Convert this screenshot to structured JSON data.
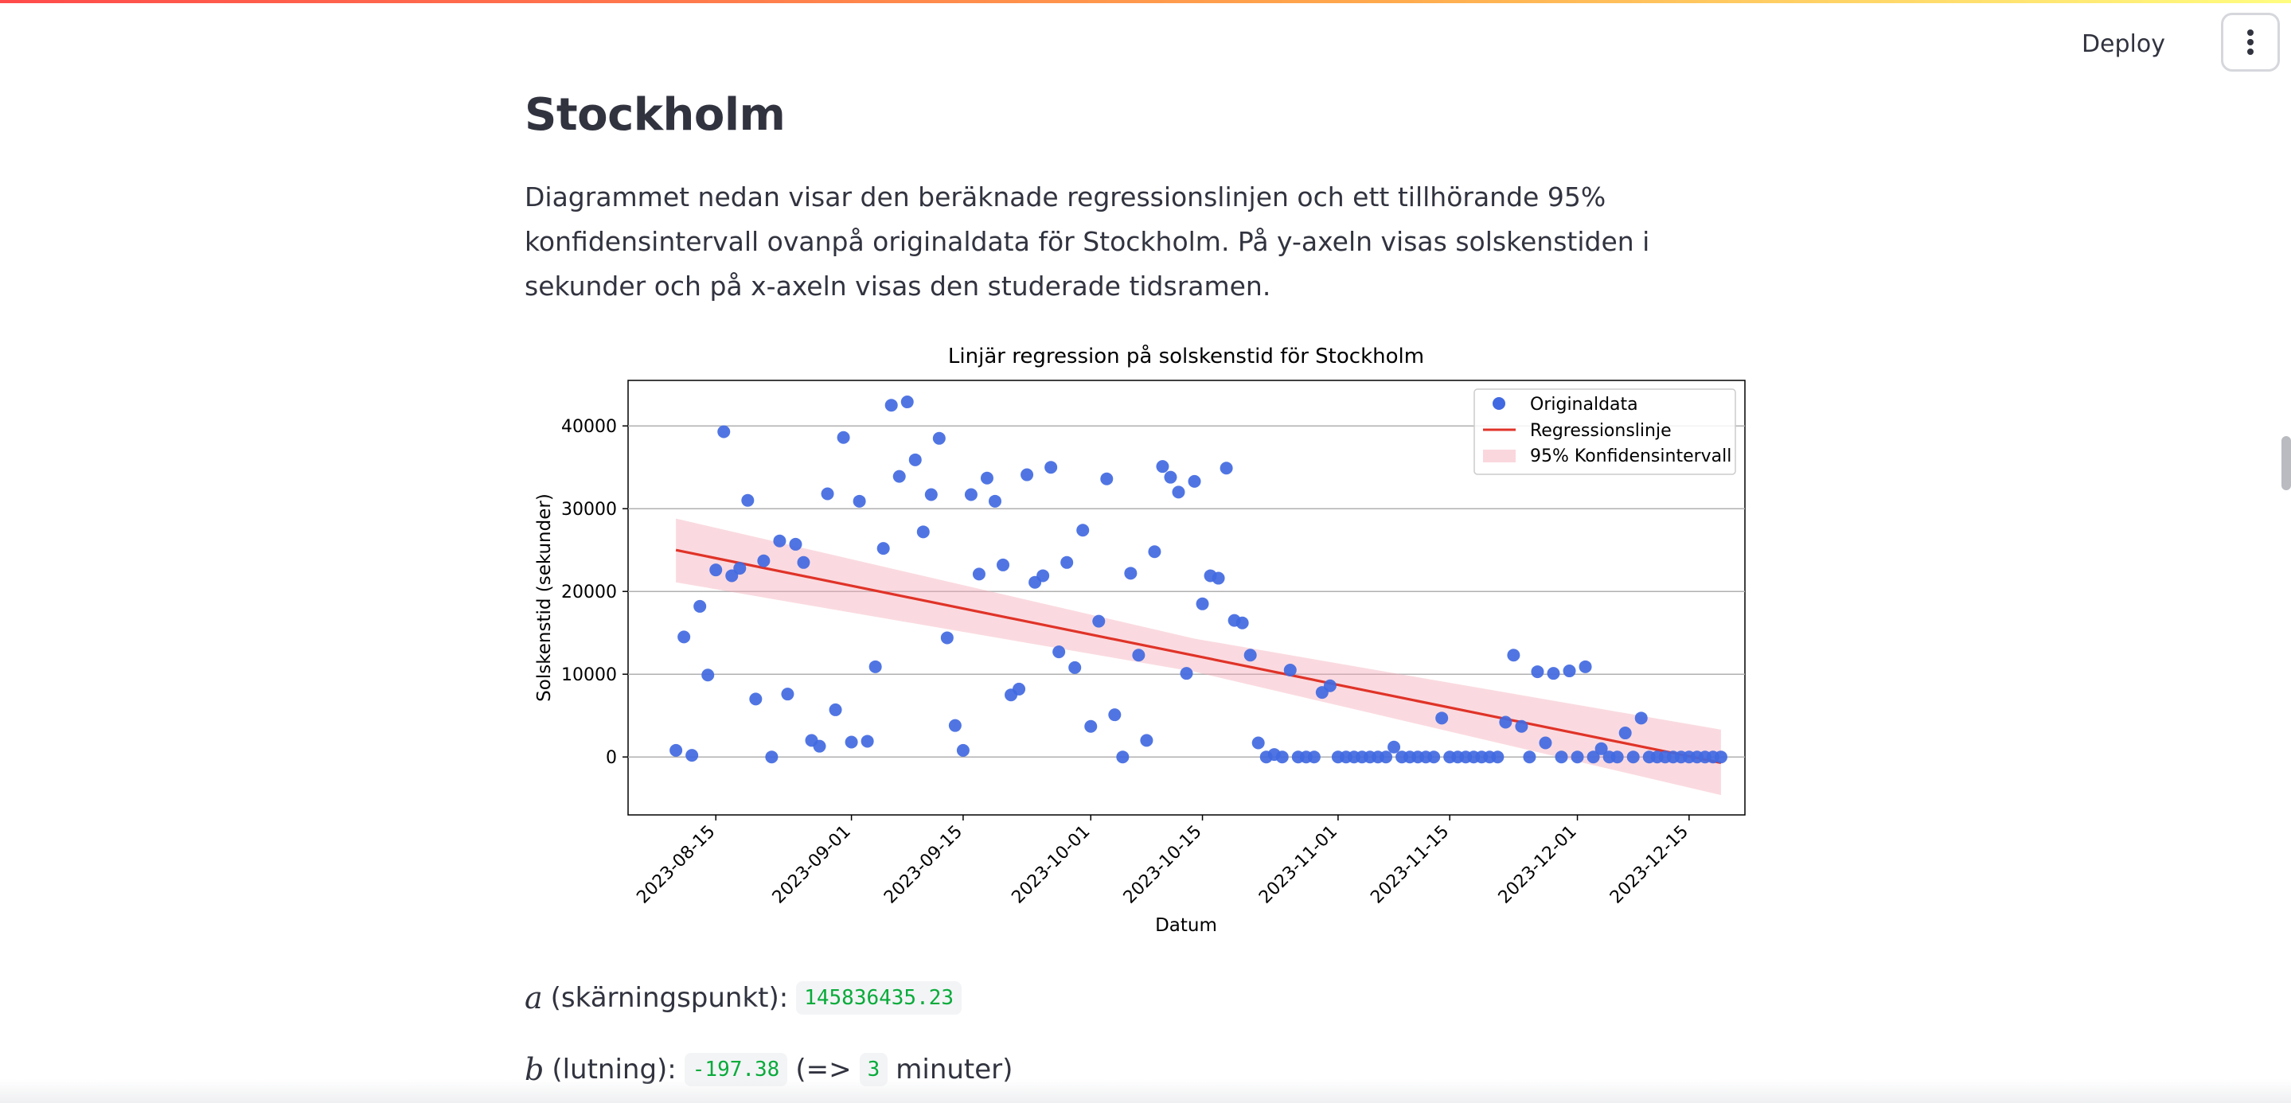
{
  "header": {
    "deploy_label": "Deploy",
    "menu_icon": "kebab-menu-icon"
  },
  "main": {
    "title": "Stockholm",
    "intro": "Diagrammet nedan visar den beräknade regressionslinjen och ett tillhörande 95% konfidensintervall ovanpå originaldata för Stockholm. På y-axeln visas solskenstiden i sekunder och på x-axeln visas den studerade tidsramen."
  },
  "stats": {
    "a_symbol": "a",
    "a_label": "(skärningspunkt):",
    "a_value": "145836435.23",
    "b_symbol": "b",
    "b_label": "(lutning):",
    "b_value": "-197.38",
    "b_open": "(=>",
    "b_minutes": "3",
    "b_close": "minuter)"
  },
  "colors": {
    "points": "#4169e1",
    "regression": "#e03328",
    "ci_fill": "#f4a6b4",
    "accent": "#ff4b4b",
    "code_text": "#09ab3b"
  },
  "chart_data": {
    "type": "scatter",
    "title": "Linjär regression på solskenstid för Stockholm",
    "xlabel": "Datum",
    "ylabel": "Solskenstid (sekunder)",
    "xlim": [
      "2023-08-04",
      "2023-12-22"
    ],
    "ylim": [
      -7000,
      45500
    ],
    "x_ticks": [
      "2023-08-15",
      "2023-09-01",
      "2023-09-15",
      "2023-10-01",
      "2023-10-15",
      "2023-11-01",
      "2023-11-15",
      "2023-12-01",
      "2023-12-15"
    ],
    "y_ticks": [
      0,
      10000,
      20000,
      30000,
      40000
    ],
    "grid": "horizontal",
    "legend": {
      "position": "top-right",
      "entries": [
        "Originaldata",
        "Regressionslinje",
        "95% Konfidensintervall"
      ]
    },
    "series": [
      {
        "name": "Originaldata",
        "kind": "scatter",
        "points": [
          [
            "2023-08-10",
            800
          ],
          [
            "2023-08-11",
            14500
          ],
          [
            "2023-08-12",
            200
          ],
          [
            "2023-08-13",
            18200
          ],
          [
            "2023-08-14",
            9900
          ],
          [
            "2023-08-15",
            22600
          ],
          [
            "2023-08-16",
            39300
          ],
          [
            "2023-08-17",
            21900
          ],
          [
            "2023-08-18",
            22800
          ],
          [
            "2023-08-19",
            31000
          ],
          [
            "2023-08-20",
            7000
          ],
          [
            "2023-08-21",
            23700
          ],
          [
            "2023-08-22",
            0
          ],
          [
            "2023-08-23",
            26100
          ],
          [
            "2023-08-24",
            7600
          ],
          [
            "2023-08-25",
            25700
          ],
          [
            "2023-08-26",
            23500
          ],
          [
            "2023-08-27",
            2000
          ],
          [
            "2023-08-28",
            1300
          ],
          [
            "2023-08-29",
            31800
          ],
          [
            "2023-08-30",
            5700
          ],
          [
            "2023-08-31",
            38600
          ],
          [
            "2023-09-01",
            1800
          ],
          [
            "2023-09-02",
            30900
          ],
          [
            "2023-09-03",
            1900
          ],
          [
            "2023-09-04",
            10900
          ],
          [
            "2023-09-05",
            25200
          ],
          [
            "2023-09-06",
            42500
          ],
          [
            "2023-09-07",
            33900
          ],
          [
            "2023-09-08",
            42900
          ],
          [
            "2023-09-09",
            35900
          ],
          [
            "2023-09-10",
            27200
          ],
          [
            "2023-09-11",
            31700
          ],
          [
            "2023-09-12",
            38500
          ],
          [
            "2023-09-13",
            14400
          ],
          [
            "2023-09-14",
            3800
          ],
          [
            "2023-09-15",
            800
          ],
          [
            "2023-09-16",
            31700
          ],
          [
            "2023-09-17",
            22100
          ],
          [
            "2023-09-18",
            33700
          ],
          [
            "2023-09-19",
            30900
          ],
          [
            "2023-09-20",
            23200
          ],
          [
            "2023-09-21",
            7500
          ],
          [
            "2023-09-22",
            8200
          ],
          [
            "2023-09-23",
            34100
          ],
          [
            "2023-09-24",
            21100
          ],
          [
            "2023-09-25",
            21900
          ],
          [
            "2023-09-26",
            35000
          ],
          [
            "2023-09-27",
            12700
          ],
          [
            "2023-09-28",
            23500
          ],
          [
            "2023-09-29",
            10800
          ],
          [
            "2023-09-30",
            27400
          ],
          [
            "2023-10-01",
            3700
          ],
          [
            "2023-10-02",
            16400
          ],
          [
            "2023-10-03",
            33600
          ],
          [
            "2023-10-04",
            5100
          ],
          [
            "2023-10-05",
            0
          ],
          [
            "2023-10-06",
            22200
          ],
          [
            "2023-10-07",
            12300
          ],
          [
            "2023-10-08",
            2000
          ],
          [
            "2023-10-09",
            24800
          ],
          [
            "2023-10-10",
            35100
          ],
          [
            "2023-10-11",
            33800
          ],
          [
            "2023-10-12",
            32000
          ],
          [
            "2023-10-13",
            10100
          ],
          [
            "2023-10-14",
            33300
          ],
          [
            "2023-10-15",
            18500
          ],
          [
            "2023-10-16",
            21900
          ],
          [
            "2023-10-17",
            21600
          ],
          [
            "2023-10-18",
            34900
          ],
          [
            "2023-10-19",
            16500
          ],
          [
            "2023-10-20",
            16200
          ],
          [
            "2023-10-21",
            12300
          ],
          [
            "2023-10-22",
            1700
          ],
          [
            "2023-10-23",
            0
          ],
          [
            "2023-10-24",
            300
          ],
          [
            "2023-10-25",
            0
          ],
          [
            "2023-10-26",
            10500
          ],
          [
            "2023-10-27",
            0
          ],
          [
            "2023-10-28",
            0
          ],
          [
            "2023-10-29",
            0
          ],
          [
            "2023-10-30",
            7800
          ],
          [
            "2023-10-31",
            8600
          ],
          [
            "2023-11-01",
            0
          ],
          [
            "2023-11-02",
            0
          ],
          [
            "2023-11-03",
            0
          ],
          [
            "2023-11-04",
            0
          ],
          [
            "2023-11-05",
            0
          ],
          [
            "2023-11-06",
            0
          ],
          [
            "2023-11-07",
            0
          ],
          [
            "2023-11-08",
            1200
          ],
          [
            "2023-11-09",
            0
          ],
          [
            "2023-11-10",
            0
          ],
          [
            "2023-11-11",
            0
          ],
          [
            "2023-11-12",
            0
          ],
          [
            "2023-11-13",
            0
          ],
          [
            "2023-11-14",
            4700
          ],
          [
            "2023-11-15",
            0
          ],
          [
            "2023-11-16",
            0
          ],
          [
            "2023-11-17",
            0
          ],
          [
            "2023-11-18",
            0
          ],
          [
            "2023-11-19",
            0
          ],
          [
            "2023-11-20",
            0
          ],
          [
            "2023-11-21",
            0
          ],
          [
            "2023-11-22",
            4200
          ],
          [
            "2023-11-23",
            12300
          ],
          [
            "2023-11-24",
            3700
          ],
          [
            "2023-11-25",
            0
          ],
          [
            "2023-11-26",
            10300
          ],
          [
            "2023-11-27",
            1700
          ],
          [
            "2023-11-28",
            10100
          ],
          [
            "2023-11-29",
            0
          ],
          [
            "2023-11-30",
            10400
          ],
          [
            "2023-12-01",
            0
          ],
          [
            "2023-12-02",
            10900
          ],
          [
            "2023-12-03",
            0
          ],
          [
            "2023-12-04",
            1000
          ],
          [
            "2023-12-05",
            0
          ],
          [
            "2023-12-06",
            0
          ],
          [
            "2023-12-07",
            2900
          ],
          [
            "2023-12-08",
            0
          ],
          [
            "2023-12-09",
            4700
          ],
          [
            "2023-12-10",
            0
          ],
          [
            "2023-12-11",
            0
          ],
          [
            "2023-12-12",
            0
          ],
          [
            "2023-12-13",
            0
          ],
          [
            "2023-12-14",
            0
          ],
          [
            "2023-12-15",
            0
          ],
          [
            "2023-12-16",
            0
          ],
          [
            "2023-12-17",
            0
          ],
          [
            "2023-12-18",
            0
          ],
          [
            "2023-12-19",
            0
          ]
        ]
      },
      {
        "name": "Regressionslinje",
        "kind": "line",
        "points": [
          [
            "2023-08-10",
            25000
          ],
          [
            "2023-12-19",
            -700
          ]
        ]
      },
      {
        "name": "95% Konfidensintervall",
        "kind": "band",
        "upper": [
          [
            "2023-08-10",
            28800
          ],
          [
            "2023-10-14",
            14300
          ],
          [
            "2023-12-19",
            3300
          ]
        ],
        "lower": [
          [
            "2023-08-10",
            21100
          ],
          [
            "2023-10-14",
            10300
          ],
          [
            "2023-12-19",
            -4600
          ]
        ]
      }
    ]
  }
}
